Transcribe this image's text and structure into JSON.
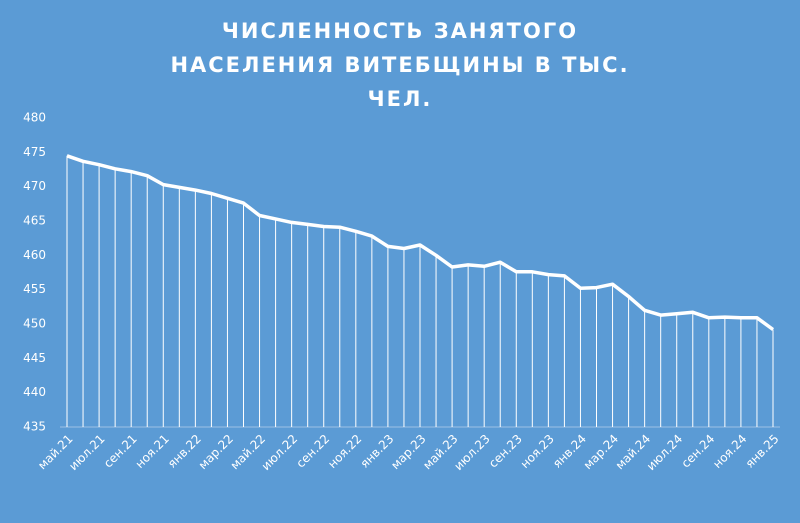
{
  "chart_data": {
    "type": "line",
    "title": "ЧИСЛЕННОСТЬ ЗАНЯТОГО НАСЕЛЕНИЯ ВИТЕБЩИНЫ В ТЫС. ЧЕЛ.",
    "categories": [
      "май.21",
      null,
      "июл.21",
      null,
      "сен.21",
      null,
      "ноя.21",
      null,
      "янв.22",
      null,
      "мар.22",
      null,
      "май.22",
      null,
      "июл.22",
      null,
      "сен.22",
      null,
      "ноя.22",
      null,
      "янв.23",
      null,
      "мар.23",
      null,
      "май.23",
      null,
      "июл.23",
      null,
      "сен.23",
      null,
      "ноя.23",
      null,
      "янв.24",
      null,
      "мар.24",
      null,
      "май.24",
      null,
      "июл.24",
      null,
      "сен.24",
      null,
      "ноя.24",
      null,
      "янв.25"
    ],
    "values": [
      474.5,
      473.7,
      473.2,
      472.6,
      472.2,
      471.6,
      470.3,
      469.9,
      469.5,
      469.0,
      468.3,
      467.6,
      465.8,
      465.3,
      464.8,
      464.5,
      464.2,
      464.1,
      463.5,
      462.8,
      461.3,
      461.0,
      461.5,
      460.0,
      458.3,
      458.6,
      458.4,
      459.0,
      457.6,
      457.6,
      457.2,
      457.0,
      455.2,
      455.3,
      455.8,
      454.0,
      452.0,
      451.3,
      451.5,
      451.7,
      450.9,
      451.0,
      450.9,
      450.9,
      449.2
    ],
    "color": "#ffffff",
    "drop_lines": true,
    "ylim": [
      435,
      480
    ],
    "yticks": [
      435,
      440,
      445,
      450,
      455,
      460,
      465,
      470,
      475,
      480
    ],
    "grid": false
  }
}
